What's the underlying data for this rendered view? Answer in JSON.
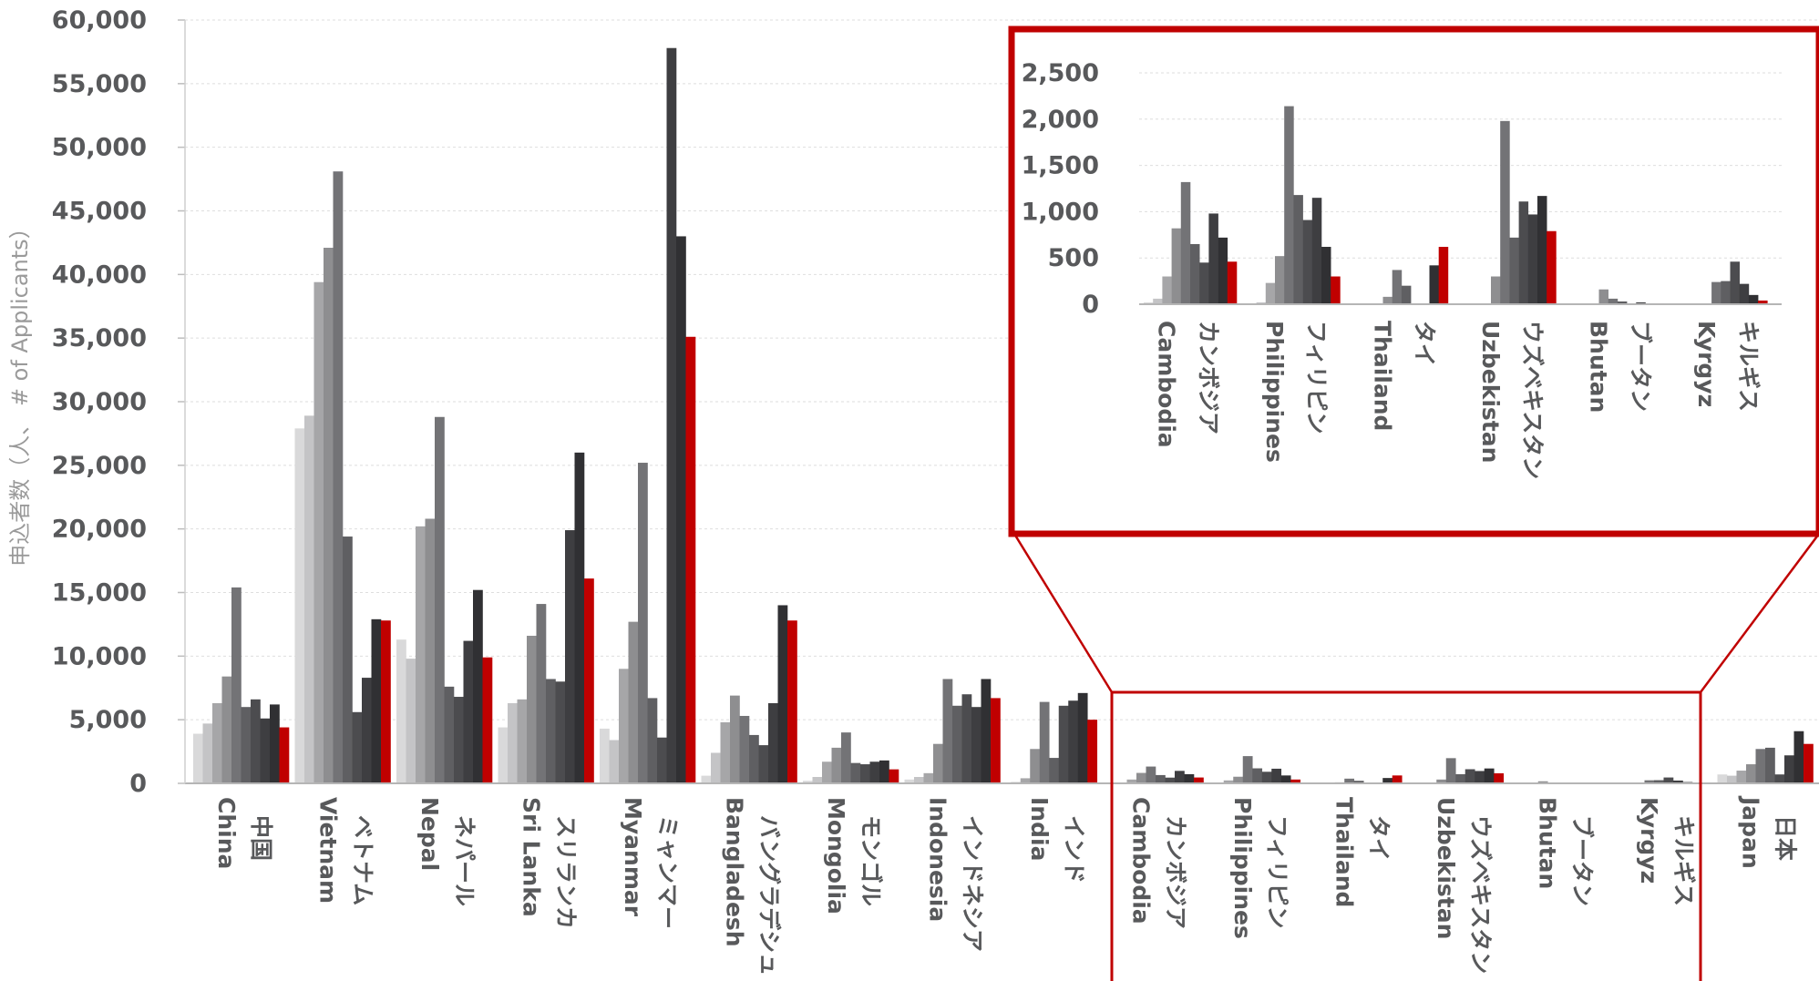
{
  "chart_data": {
    "type": "bar",
    "ylabel": "申込者数（人、 # of Applicants）",
    "ylim": [
      0,
      60000
    ],
    "yticks": [
      "0",
      "5,000",
      "10,000",
      "15,000",
      "20,000",
      "25,000",
      "30,000",
      "35,000",
      "40,000",
      "45,000",
      "50,000",
      "55,000",
      "60,000"
    ],
    "grid": true,
    "bar_colors": [
      "#e3e3e4",
      "#d9d9da",
      "#c4c4c6",
      "#a6a6a8",
      "#8e8e90",
      "#737376",
      "#5f5f62",
      "#4c4c4f",
      "#3e3e41",
      "#303033",
      "#c00000"
    ],
    "categories": [
      {
        "en": "China",
        "ja": "中国",
        "values": [
          3900,
          4700,
          6300,
          8400,
          15400,
          6000,
          6600,
          5100,
          6200,
          4400
        ]
      },
      {
        "en": "Vietnam",
        "ja": "ベトナム",
        "values": [
          27900,
          28900,
          39400,
          42100,
          48100,
          19400,
          5600,
          8300,
          12900,
          12800
        ]
      },
      {
        "en": "Nepal",
        "ja": "ネパール",
        "values": [
          11300,
          9800,
          20200,
          20800,
          28800,
          7600,
          6800,
          11200,
          15200,
          9900
        ]
      },
      {
        "en": "Sri Lanka",
        "ja": "スリランカ",
        "values": [
          4400,
          6300,
          6600,
          11600,
          14100,
          8200,
          8000,
          19900,
          26000,
          16100
        ]
      },
      {
        "en": "Myanmar",
        "ja": "ミャンマー",
        "values": [
          4300,
          3400,
          9000,
          12700,
          25200,
          6700,
          3600,
          57800,
          43000,
          35100
        ]
      },
      {
        "en": "Bangladesh",
        "ja": "バングラデシュ",
        "values": [
          600,
          2400,
          4800,
          6900,
          5300,
          3800,
          3000,
          6300,
          14000,
          12800
        ]
      },
      {
        "en": "Mongolia",
        "ja": "モンゴル",
        "values": [
          200,
          500,
          1700,
          2800,
          4000,
          1600,
          1500,
          1700,
          1800,
          1100
        ]
      },
      {
        "en": "Indonesia",
        "ja": "インドネシア",
        "values": [
          300,
          500,
          800,
          3100,
          8200,
          6100,
          7000,
          6000,
          8200,
          6700
        ]
      },
      {
        "en": "India",
        "ja": "インド",
        "values": [
          100,
          400,
          2700,
          6400,
          2000,
          6100,
          6500,
          7100,
          5000
        ]
      },
      {
        "en": "Cambodia",
        "ja": "カンボジア",
        "values": [
          20,
          60,
          300,
          820,
          1320,
          650,
          450,
          980,
          720,
          460
        ]
      },
      {
        "en": "Philippines",
        "ja": "フィリピン",
        "values": [
          20,
          230,
          520,
          2140,
          1180,
          910,
          1150,
          620,
          300
        ]
      },
      {
        "en": "Thailand",
        "ja": "タイ",
        "values": [
          10,
          10,
          80,
          370,
          200,
          10,
          10,
          420,
          620
        ]
      },
      {
        "en": "Uzbekistan",
        "ja": "ウズベキスタン",
        "values": [
          0,
          0,
          300,
          1980,
          720,
          1110,
          970,
          1170,
          790
        ]
      },
      {
        "en": "Bhutan",
        "ja": "ブータン",
        "values": [
          0,
          0,
          160,
          60,
          30,
          10,
          20,
          10,
          10
        ]
      },
      {
        "en": "Kyrgyz",
        "ja": "キルギス",
        "values": [
          0,
          0,
          240,
          250,
          460,
          220,
          100,
          40
        ]
      },
      {
        "en": "Japan",
        "ja": "日本",
        "values": [
          700,
          600,
          1000,
          1500,
          2700,
          2800,
          700,
          2200,
          4100,
          3100
        ]
      }
    ],
    "inset": {
      "ylim": [
        0,
        2500
      ],
      "yticks": [
        "0",
        "500",
        "1,000",
        "1,500",
        "2,000",
        "2,500"
      ],
      "categories": [
        "Cambodia",
        "Philippines",
        "Thailand",
        "Uzbekistan",
        "Bhutan",
        "Kyrgyz"
      ],
      "highlight_color": "#c00000"
    }
  }
}
